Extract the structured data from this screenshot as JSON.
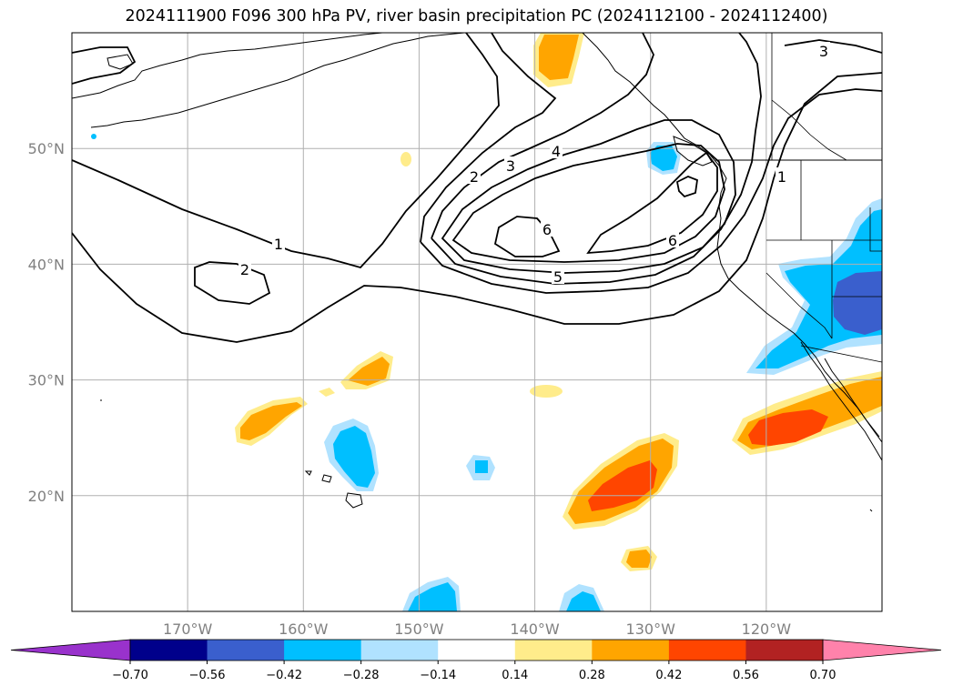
{
  "title": "2024111900 F096 300 hPa PV, river basin precipitation PC (2024112100 - 2024112400)",
  "map": {
    "lon_range": [
      -180,
      -110
    ],
    "lat_range": [
      10,
      60
    ],
    "lat_ticks": [
      {
        "value": 20,
        "label": "20°N"
      },
      {
        "value": 30,
        "label": "30°N"
      },
      {
        "value": 40,
        "label": "40°N"
      },
      {
        "value": 50,
        "label": "50°N"
      }
    ],
    "lon_ticks": [
      {
        "value": -170,
        "label": "170°W"
      },
      {
        "value": -160,
        "label": "160°W"
      },
      {
        "value": -150,
        "label": "150°W"
      },
      {
        "value": -140,
        "label": "140°W"
      },
      {
        "value": -130,
        "label": "130°W"
      },
      {
        "value": -120,
        "label": "120°W"
      }
    ],
    "grid": true,
    "pv_contour_labels": [
      "1",
      "2",
      "3",
      "4",
      "5",
      "6"
    ]
  },
  "colorbar": {
    "orientation": "horizontal",
    "extend": "both",
    "boundaries": [
      -0.7,
      -0.56,
      -0.42,
      -0.28,
      -0.14,
      0.14,
      0.28,
      0.42,
      0.56,
      0.7
    ],
    "tick_labels": [
      "−0.70",
      "−0.56",
      "−0.42",
      "−0.28",
      "−0.14",
      "0.14",
      "0.28",
      "0.42",
      "0.56",
      "0.70"
    ],
    "colors": [
      "#9932cc",
      "#00008b",
      "#3a5fcd",
      "#00bfff",
      "#b0e2ff",
      "#ffffff",
      "#ffec8b",
      "#ffa500",
      "#ff4500",
      "#b22222",
      "#ff82ab"
    ]
  }
}
